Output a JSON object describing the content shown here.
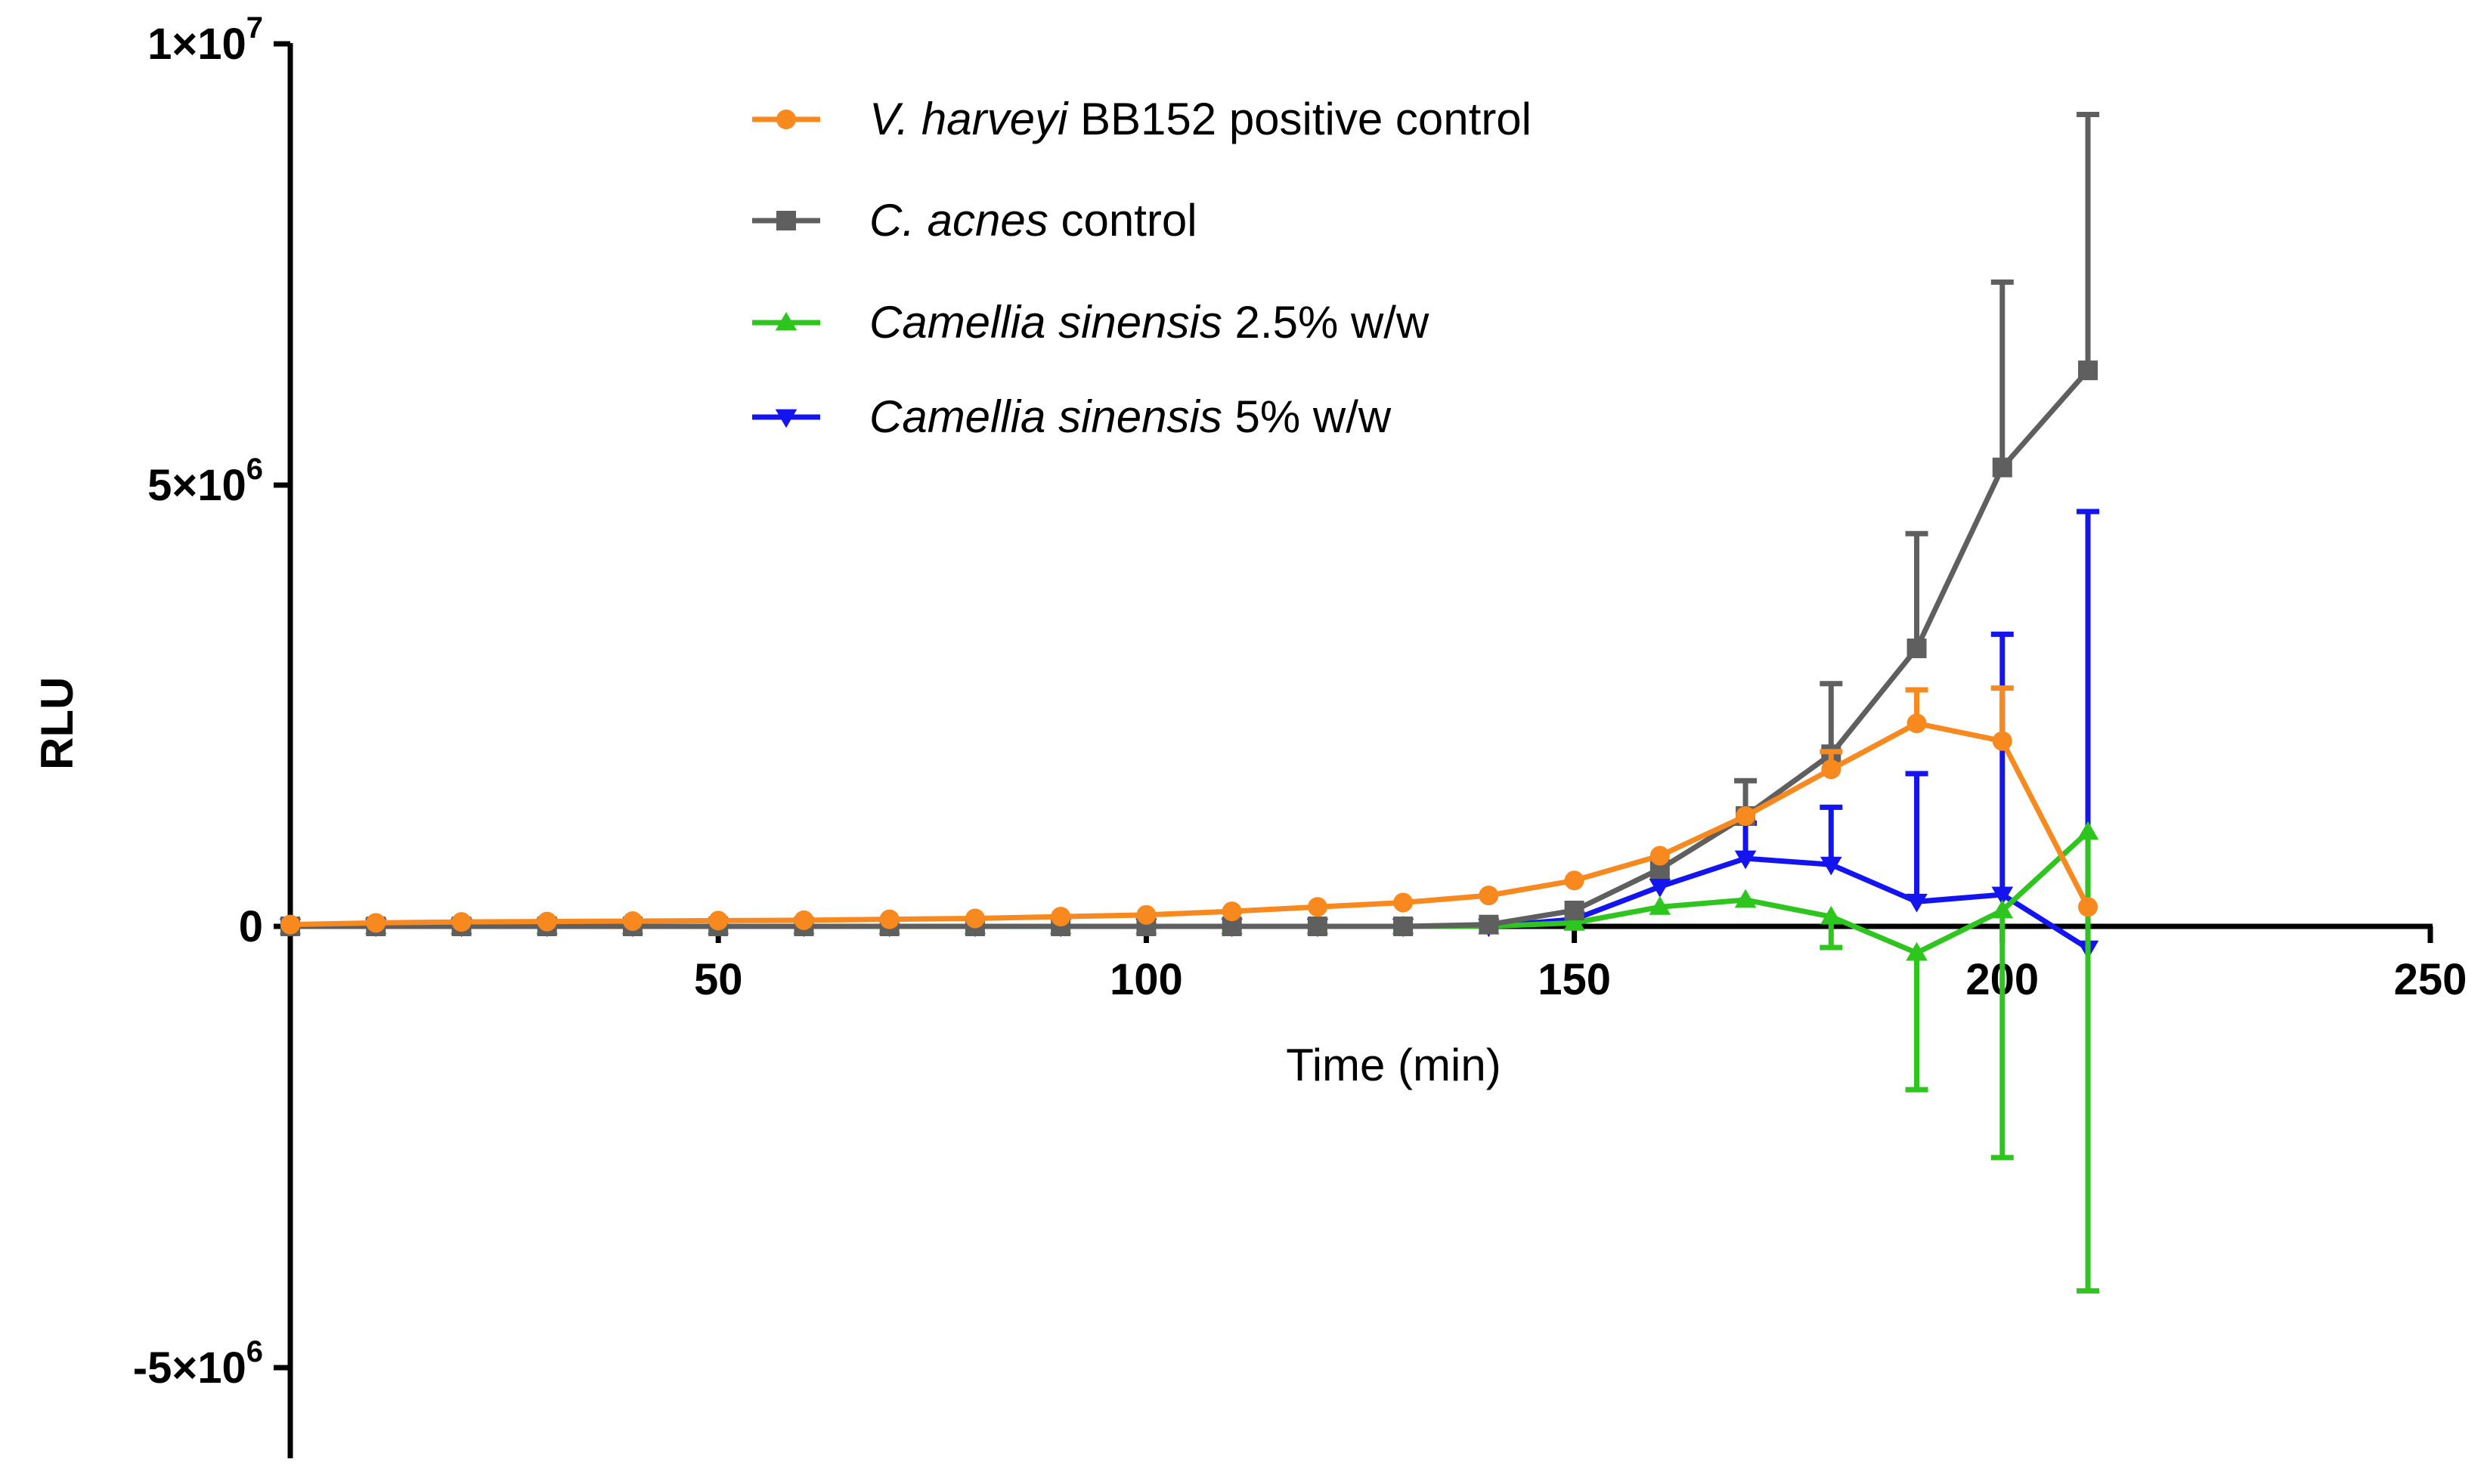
{
  "chart_data": {
    "type": "line",
    "xlabel": "Time (min)",
    "ylabel": "RLU",
    "xlim": [
      0,
      250
    ],
    "ylim": [
      -6000000,
      10000000
    ],
    "x_ticks": [
      50,
      100,
      150,
      200,
      250
    ],
    "x_tick_labels": [
      "50",
      "100",
      "150",
      "200",
      "250"
    ],
    "y_ticks": [
      {
        "value": 10000000,
        "mantissa": "1",
        "times": "×10",
        "exp": "7"
      },
      {
        "value": 5000000,
        "mantissa": "5",
        "times": "×10",
        "exp": "6"
      },
      {
        "value": 0,
        "mantissa": "0",
        "times": "",
        "exp": ""
      },
      {
        "value": -5000000,
        "mantissa": "-5",
        "times": "×10",
        "exp": "6"
      }
    ],
    "x": [
      0,
      10,
      20,
      30,
      40,
      50,
      60,
      70,
      80,
      90,
      100,
      110,
      120,
      130,
      140,
      150,
      160,
      170,
      180,
      190,
      200,
      210
    ],
    "series": [
      {
        "name": "V. harveyi BB152 positive control",
        "legend_italic": "V. harveyi",
        "legend_rest": " BB152 positive control",
        "color": "#F7891F",
        "marker": "circle",
        "values": [
          20000,
          40000,
          50000,
          55000,
          60000,
          65000,
          70000,
          80000,
          90000,
          110000,
          130000,
          170000,
          220000,
          270000,
          350000,
          520000,
          800000,
          1250000,
          1780000,
          2300000,
          2100000,
          220000
        ],
        "error": [
          0,
          0,
          0,
          0,
          0,
          0,
          0,
          0,
          0,
          0,
          0,
          0,
          0,
          0,
          0,
          0,
          0,
          0,
          200000,
          380000,
          600000,
          0
        ],
        "error_dir": "up"
      },
      {
        "name": "C. acnes control",
        "legend_italic": "C. acnes",
        "legend_rest": " control",
        "color": "#5F5F5F",
        "marker": "square",
        "values": [
          0,
          0,
          0,
          0,
          0,
          0,
          0,
          0,
          0,
          0,
          0,
          0,
          0,
          0,
          20000,
          180000,
          650000,
          1250000,
          1950000,
          3150000,
          5200000,
          6300000
        ],
        "error": [
          0,
          0,
          0,
          0,
          0,
          0,
          0,
          0,
          0,
          0,
          0,
          0,
          0,
          0,
          0,
          0,
          0,
          400000,
          800000,
          1300000,
          2100000,
          2900000
        ],
        "error_dir": "up"
      },
      {
        "name": "Camellia sinensis 2.5% w/w",
        "legend_italic": "Camellia sinensis",
        "legend_rest": " 2.5% w/w",
        "color": "#2EC51E",
        "marker": "triangle-up",
        "values": [
          0,
          0,
          0,
          0,
          0,
          0,
          0,
          0,
          0,
          0,
          0,
          0,
          0,
          0,
          0,
          40000,
          220000,
          300000,
          110000,
          -300000,
          180000,
          1070000
        ],
        "error": [
          0,
          0,
          0,
          0,
          0,
          0,
          0,
          0,
          0,
          0,
          0,
          0,
          0,
          0,
          0,
          0,
          0,
          0,
          350000,
          1550000,
          2800000,
          5200000
        ],
        "error_dir": "down"
      },
      {
        "name": "Camellia sinensis 5% w/w",
        "legend_italic": "Camellia sinensis",
        "legend_rest": " 5% w/w",
        "color": "#1414F0",
        "marker": "triangle-down",
        "values": [
          0,
          0,
          0,
          0,
          0,
          0,
          0,
          0,
          0,
          0,
          0,
          0,
          0,
          0,
          0,
          80000,
          450000,
          770000,
          700000,
          280000,
          360000,
          -250000
        ],
        "error": [
          0,
          0,
          0,
          0,
          0,
          0,
          0,
          0,
          0,
          0,
          0,
          0,
          0,
          0,
          0,
          0,
          0,
          400000,
          650000,
          1450000,
          2950000,
          4950000
        ],
        "error_dir": "up"
      }
    ],
    "legend_position": "top-center"
  }
}
